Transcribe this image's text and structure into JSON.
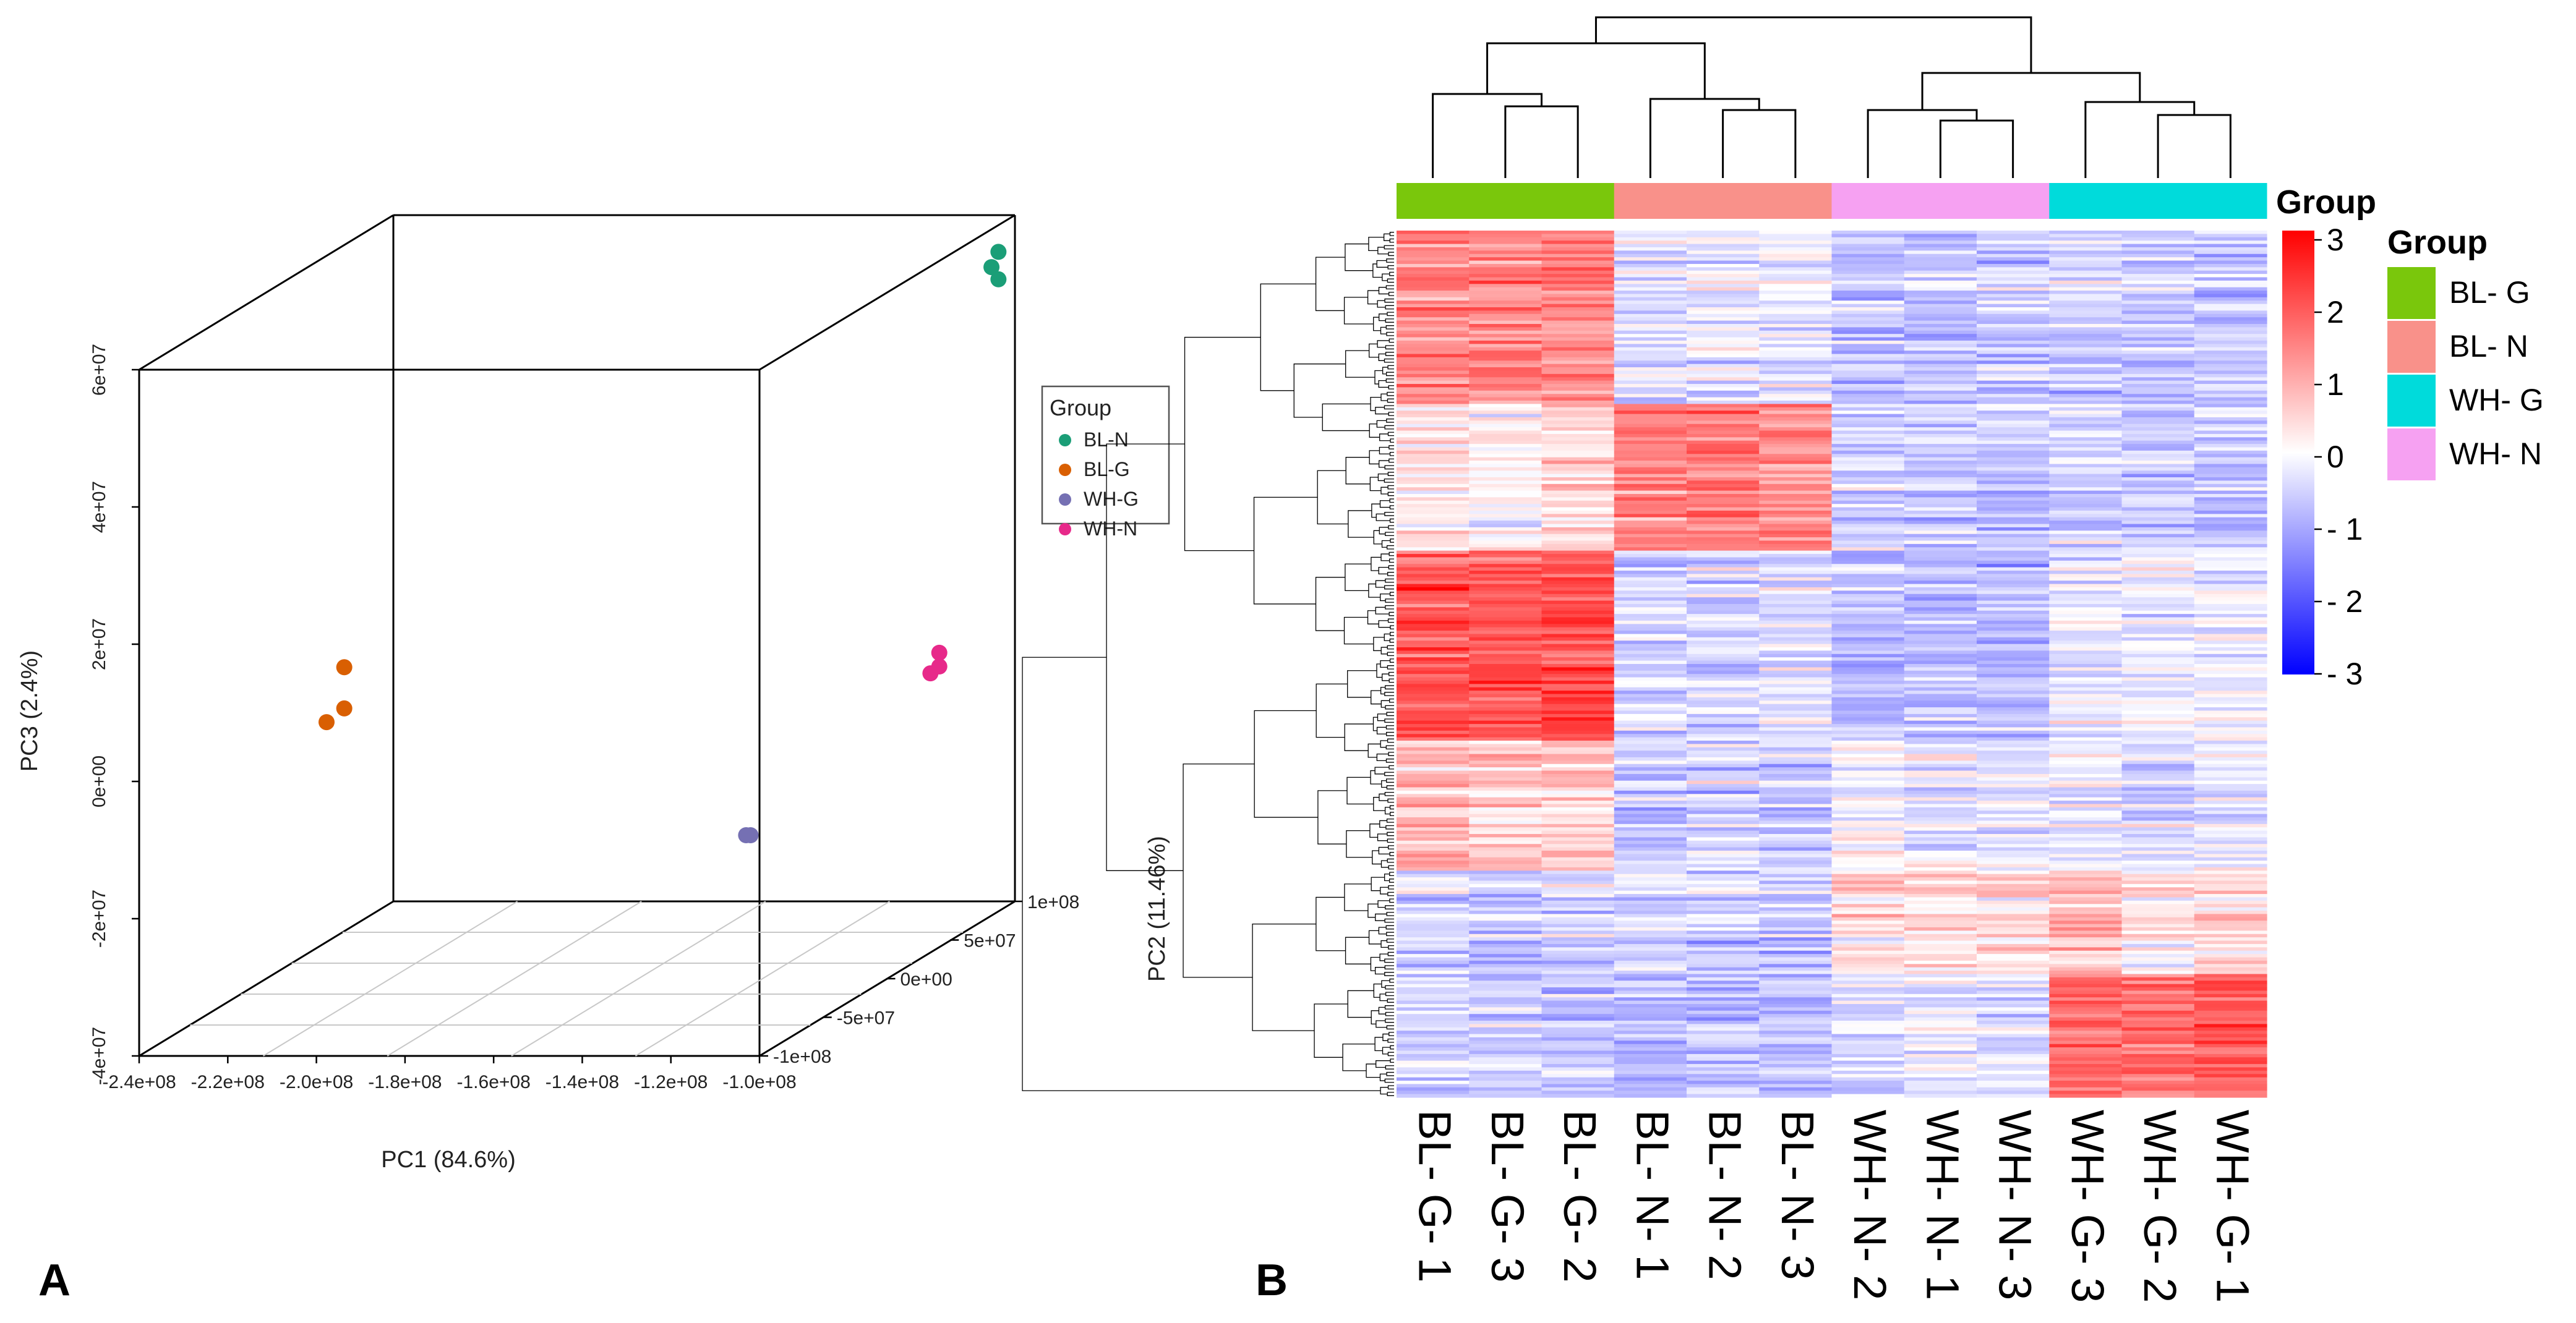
{
  "figure": {
    "panel_a_label": "A",
    "panel_b_label": "B"
  },
  "chart_data": [
    {
      "type": "scatter",
      "panel": "A",
      "subtype": "3d-scatter",
      "xlabel": "PC1 (84.6%)",
      "ylabel": "PC2 (11.46%)",
      "zlabel": "PC3 (2.4%)",
      "x_ticks": [
        "-2.4e+08",
        "-2.2e+08",
        "-2.0e+08",
        "-1.8e+08",
        "-1.6e+08",
        "-1.4e+08",
        "-1.2e+08",
        "-1.0e+08"
      ],
      "y_ticks": [
        "-1e+08",
        "-5e+07",
        "0e+00",
        "5e+07",
        "1e+08"
      ],
      "z_ticks": [
        "-4e+07",
        "-2e+07",
        "0e+00",
        "2e+07",
        "4e+07",
        "6e+07"
      ],
      "xlim": [
        -240000000,
        -100000000
      ],
      "ylim": [
        -100000000,
        100000000
      ],
      "zlim": [
        -40000000,
        60000000
      ],
      "legend_title": "Group",
      "legend_position": "right",
      "series": [
        {
          "name": "BL-N",
          "color": "#1b9e77",
          "points": [
            {
              "x": -100000000,
              "y": 88000000,
              "z": 56000000
            },
            {
              "x": -101000000,
              "y": 86000000,
              "z": 54000000
            },
            {
              "x": -100000000,
              "y": 88000000,
              "z": 52000000
            }
          ]
        },
        {
          "name": "BL-G",
          "color": "#d95f02",
          "points": [
            {
              "x": -235000000,
              "y": 30000000,
              "z": -6000000
            },
            {
              "x": -231000000,
              "y": 30000000,
              "z": -4000000
            },
            {
              "x": -231000000,
              "y": 30000000,
              "z": 2000000
            }
          ]
        },
        {
          "name": "WH-G",
          "color": "#7570b3",
          "points": [
            {
              "x": -134000000,
              "y": 8000000,
              "z": -20000000
            },
            {
              "x": -133000000,
              "y": 8000000,
              "z": -20000000
            }
          ]
        },
        {
          "name": "WH-N",
          "color": "#e7298a",
          "points": [
            {
              "x": -99000000,
              "y": 31000000,
              "z": 1000000
            },
            {
              "x": -97000000,
              "y": 31000000,
              "z": 2000000
            },
            {
              "x": -97000000,
              "y": 31000000,
              "z": 4000000
            }
          ]
        }
      ]
    },
    {
      "type": "heatmap",
      "panel": "B",
      "description": "Hierarchically clustered z-score heatmap",
      "columns": [
        "BL- G- 1",
        "BL- G- 3",
        "BL- G- 2",
        "BL- N- 1",
        "BL- N- 2",
        "BL- N- 3",
        "WH- N- 2",
        "WH- N- 1",
        "WH- N- 3",
        "WH- G- 3",
        "WH- G- 2",
        "WH- G- 1"
      ],
      "column_groups": [
        "BL- G",
        "BL- G",
        "BL- G",
        "BL- N",
        "BL- N",
        "BL- N",
        "WH- N",
        "WH- N",
        "WH- N",
        "WH- G",
        "WH- G",
        "WH- G"
      ],
      "annotation_title": "Group",
      "groups": [
        {
          "name": "BL- G",
          "color": "#7ac70c"
        },
        {
          "name": "BL- N",
          "color": "#f9918a"
        },
        {
          "name": "WH- G",
          "color": "#00dbdb"
        },
        {
          "name": "WH- N",
          "color": "#f6a1f2"
        }
      ],
      "color_scale": {
        "min": -3,
        "max": 3,
        "colors": [
          "#0000ff",
          "#ffffff",
          "#ff0000"
        ],
        "tick_labels": [
          "3",
          "2",
          "1",
          "0",
          "- 1",
          "- 2",
          "- 3"
        ]
      },
      "row_blocks": [
        {
          "means": [
            1.4,
            1.4,
            1.3,
            -0.3,
            -0.2,
            -0.2,
            -0.7,
            -0.7,
            -0.6,
            -0.6,
            -0.6,
            -0.6
          ],
          "weight": 20
        },
        {
          "means": [
            0.2,
            0.1,
            0.5,
            1.4,
            1.5,
            1.3,
            -0.6,
            -0.6,
            -0.7,
            -0.6,
            -0.6,
            -0.7
          ],
          "weight": 17
        },
        {
          "means": [
            2.0,
            2.0,
            2.1,
            -0.5,
            -0.4,
            -0.3,
            -0.7,
            -0.7,
            -0.8,
            -0.2,
            -0.1,
            -0.2
          ],
          "weight": 22
        },
        {
          "means": [
            0.9,
            0.6,
            0.6,
            -0.6,
            -0.5,
            -0.6,
            0.0,
            -0.2,
            -0.3,
            -0.3,
            -0.4,
            -0.2
          ],
          "weight": 15
        },
        {
          "means": [
            -0.4,
            -0.6,
            -0.5,
            -0.5,
            -0.6,
            -0.7,
            0.3,
            0.4,
            0.4,
            0.7,
            0.2,
            0.5
          ],
          "weight": 12
        },
        {
          "means": [
            -0.5,
            -0.6,
            -0.6,
            -0.8,
            -0.7,
            -0.8,
            -0.4,
            -0.3,
            -0.4,
            1.7,
            1.6,
            1.9
          ],
          "weight": 14
        }
      ]
    }
  ]
}
